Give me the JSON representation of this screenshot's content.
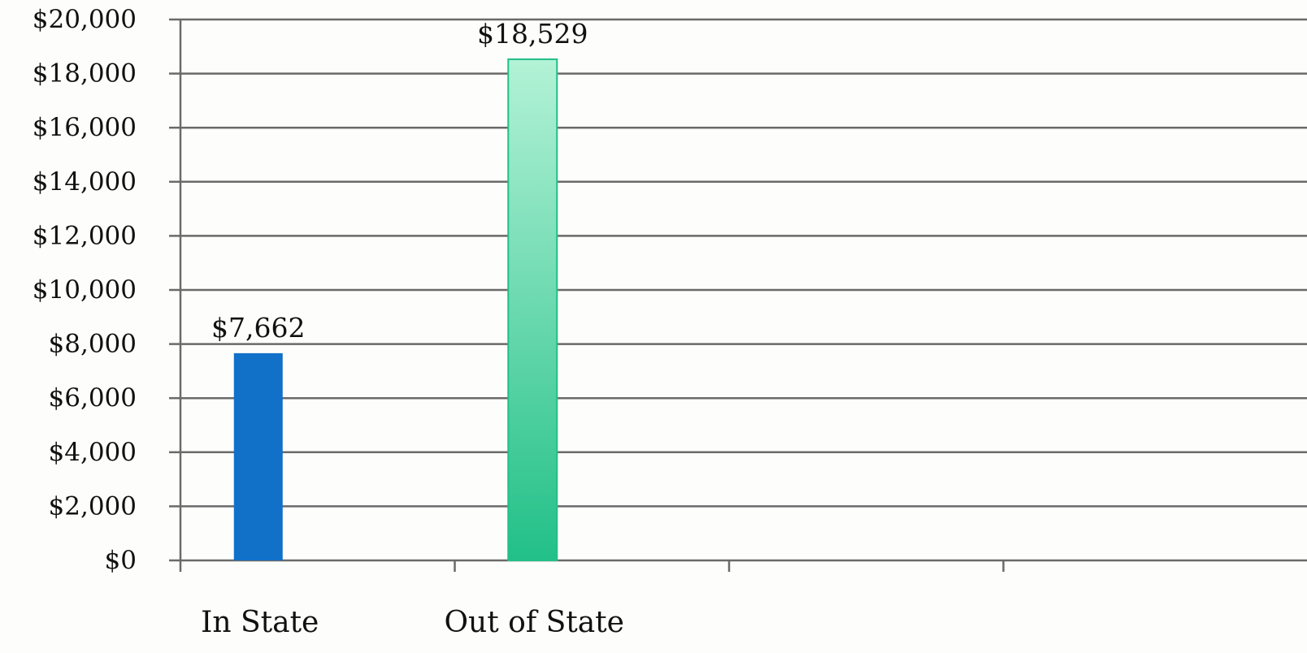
{
  "chart_data": {
    "type": "bar",
    "categories": [
      "In State",
      "Out of State"
    ],
    "values": [
      7662,
      18529
    ],
    "data_labels": [
      "$7,662",
      "$18,529"
    ],
    "ylim": [
      0,
      20000
    ],
    "y_ticks": [
      {
        "value": 0,
        "label": "$0"
      },
      {
        "value": 2000,
        "label": "$2,000"
      },
      {
        "value": 4000,
        "label": "$4,000"
      },
      {
        "value": 6000,
        "label": "$6,000"
      },
      {
        "value": 8000,
        "label": "$8,000"
      },
      {
        "value": 10000,
        "label": "$10,000"
      },
      {
        "value": 12000,
        "label": "$12,000"
      },
      {
        "value": 14000,
        "label": "$14,000"
      },
      {
        "value": 16000,
        "label": "$16,000"
      },
      {
        "value": 18000,
        "label": "$18,000"
      },
      {
        "value": 20000,
        "label": "$20,000"
      }
    ],
    "category_slots": 4,
    "grid": true,
    "legend": "none",
    "colors": {
      "in_state": "#1170c8",
      "out_of_state_top": "#b3f2d6",
      "out_of_state_bottom": "#22c088",
      "gridline": "#6a6a6a"
    }
  }
}
